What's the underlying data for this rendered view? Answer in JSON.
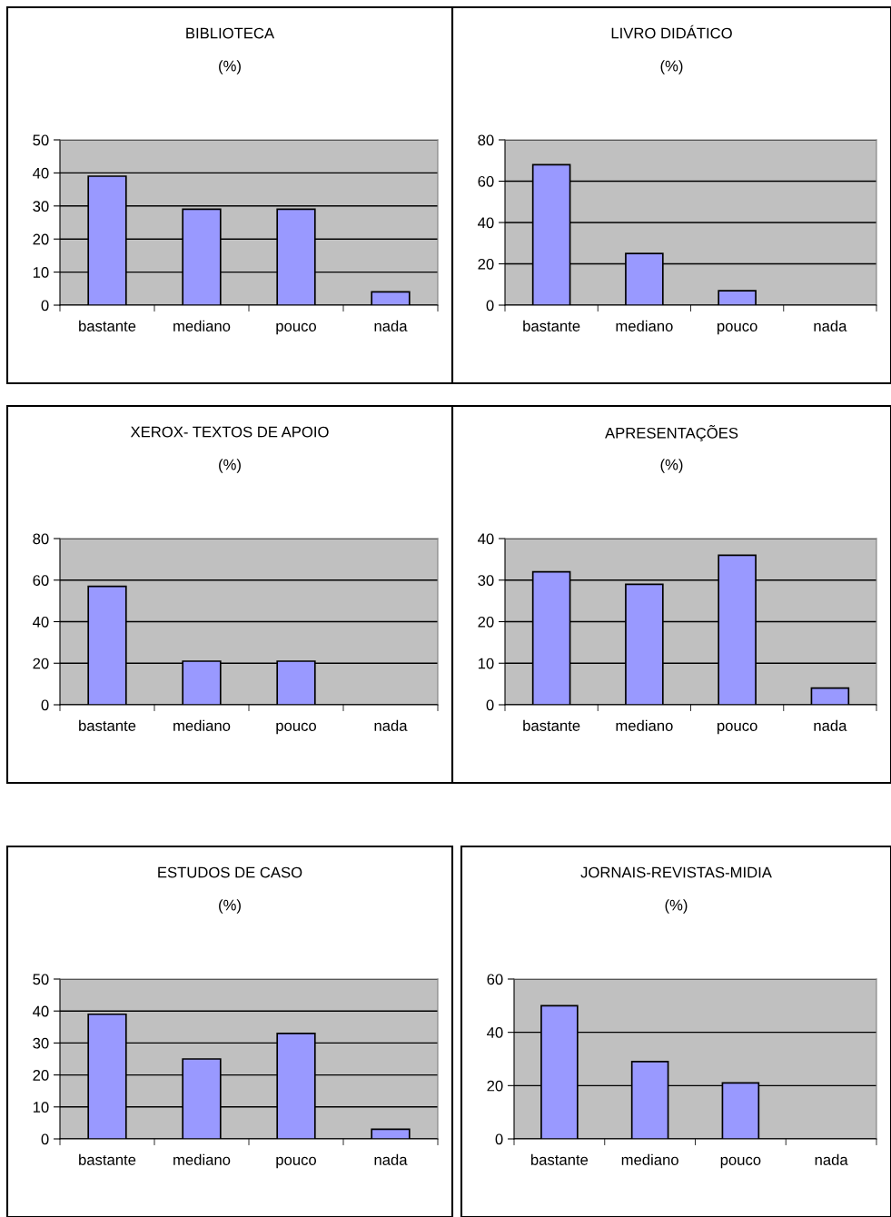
{
  "chart_data": [
    {
      "type": "bar",
      "title": "BIBLIOTECA",
      "subtitle": "(%)",
      "categories": [
        "bastante",
        "mediano",
        "pouco",
        "nada"
      ],
      "values": [
        39,
        29,
        29,
        4
      ],
      "color": "#9999ff",
      "ylim": [
        0,
        50
      ],
      "yticks": [
        0,
        10,
        20,
        30,
        40,
        50
      ],
      "grid": "y"
    },
    {
      "type": "bar",
      "title": "LIVRO DIDÁTICO",
      "subtitle": "(%)",
      "categories": [
        "bastante",
        "mediano",
        "pouco",
        "nada"
      ],
      "values": [
        68,
        25,
        7,
        0
      ],
      "color": "#9999ff",
      "ylim": [
        0,
        80
      ],
      "yticks": [
        0,
        20,
        40,
        60,
        80
      ],
      "grid": "y"
    },
    {
      "type": "bar",
      "title": "XEROX- TEXTOS DE APOIO",
      "subtitle": "(%)",
      "categories": [
        "bastante",
        "mediano",
        "pouco",
        "nada"
      ],
      "values": [
        57,
        21,
        21,
        0
      ],
      "color": "#9999ff",
      "ylim": [
        0,
        80
      ],
      "yticks": [
        0,
        20,
        40,
        60,
        80
      ],
      "grid": "y"
    },
    {
      "type": "bar",
      "title": "APRESENTAÇÕES",
      "subtitle": "(%)",
      "categories": [
        "bastante",
        "mediano",
        "pouco",
        "nada"
      ],
      "values": [
        32,
        29,
        36,
        4
      ],
      "color": "#9999ff",
      "ylim": [
        0,
        40
      ],
      "yticks": [
        0,
        10,
        20,
        30,
        40
      ],
      "grid": "y"
    },
    {
      "type": "bar",
      "title": "ESTUDOS DE CASO",
      "subtitle": "(%)",
      "categories": [
        "bastante",
        "mediano",
        "pouco",
        "nada"
      ],
      "values": [
        39,
        25,
        33,
        3
      ],
      "color": "#9999ff",
      "ylim": [
        0,
        50
      ],
      "yticks": [
        0,
        10,
        20,
        30,
        40,
        50
      ],
      "grid": "y"
    },
    {
      "type": "bar",
      "title": "JORNAIS-REVISTAS-MIDIA",
      "subtitle": "(%)",
      "categories": [
        "bastante",
        "mediano",
        "pouco",
        "nada"
      ],
      "values": [
        50,
        29,
        21,
        0
      ],
      "color": "#9999ff",
      "ylim": [
        0,
        60
      ],
      "yticks": [
        0,
        20,
        40,
        60
      ],
      "grid": "y"
    }
  ]
}
